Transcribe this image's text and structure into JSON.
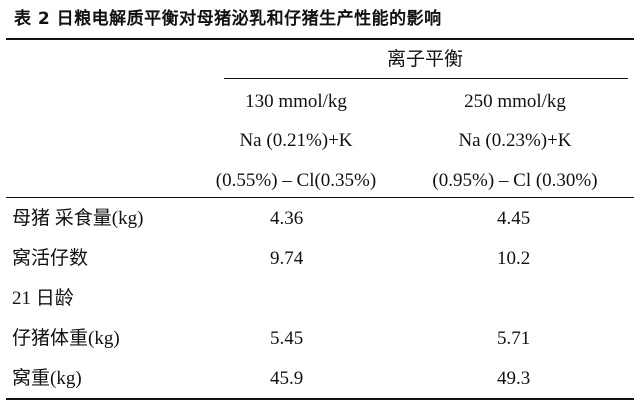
{
  "title": "表 2 日粮电解质平衡对母猪泌乳和仔猪生产性能的影响",
  "table": {
    "group_header": "离子平衡",
    "columns": [
      [
        "130 mmol/kg",
        "Na (0.21%)+K",
        "(0.55%) – Cl(0.35%)"
      ],
      [
        "250 mmol/kg",
        "Na (0.23%)+K",
        "(0.95%) – Cl (0.30%)"
      ]
    ],
    "rows": [
      {
        "label": "母猪 采食量(kg)",
        "values": [
          "4.36",
          "4.45"
        ]
      },
      {
        "label": "窝活仔数",
        "values": [
          "9.74",
          "10.2"
        ]
      },
      {
        "label": "21 日龄",
        "values": []
      },
      {
        "label": "仔猪体重(kg)",
        "values": [
          "5.45",
          "5.71"
        ]
      },
      {
        "label": "窝重(kg)",
        "values": [
          "45.9",
          "49.3"
        ]
      }
    ]
  }
}
